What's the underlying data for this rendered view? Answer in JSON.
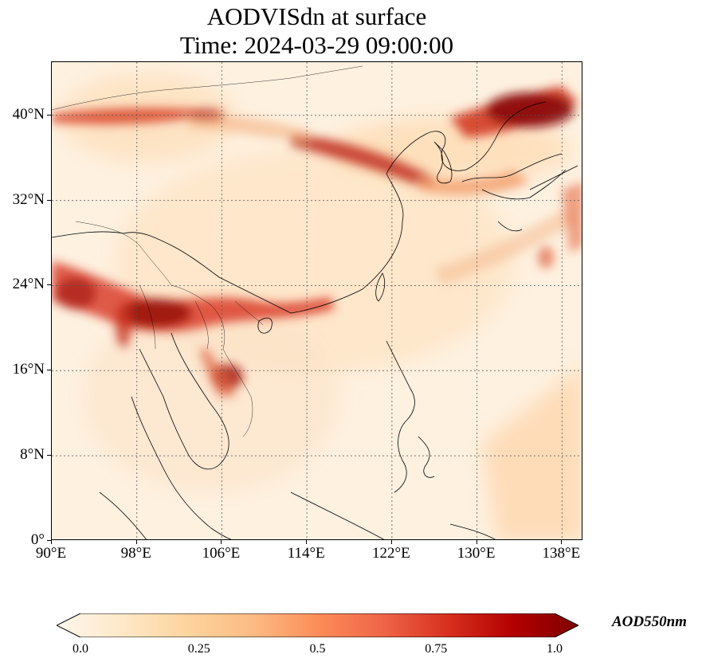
{
  "title": {
    "line1": "AODVISdn at surface",
    "line2": "Time: 2024-03-29 09:00:00"
  },
  "map": {
    "lon_range": [
      90,
      140
    ],
    "lat_range": [
      0,
      45
    ],
    "lat_ticks": [
      {
        "value": 0,
        "label": "0°"
      },
      {
        "value": 8,
        "label": "8°N"
      },
      {
        "value": 16,
        "label": "16°N"
      },
      {
        "value": 24,
        "label": "24°N"
      },
      {
        "value": 32,
        "label": "32°N"
      },
      {
        "value": 40,
        "label": "40°N"
      }
    ],
    "lon_ticks": [
      {
        "value": 90,
        "label": "90°E"
      },
      {
        "value": 98,
        "label": "98°E"
      },
      {
        "value": 106,
        "label": "106°E"
      },
      {
        "value": 114,
        "label": "114°E"
      },
      {
        "value": 122,
        "label": "122°E"
      },
      {
        "value": 130,
        "label": "130°E"
      },
      {
        "value": 138,
        "label": "138°E"
      }
    ],
    "gridlines": true,
    "colormap": "OrRd",
    "plumes": [
      {
        "region": "north-china-northeast-band",
        "aod": 0.75
      },
      {
        "region": "korea-japan-sea",
        "aod": 0.95
      },
      {
        "region": "northern-india-40N",
        "aod": 0.65
      },
      {
        "region": "myanmar-laos-south-china",
        "aod": 0.9
      },
      {
        "region": "cambodia-laos",
        "aod": 0.8
      }
    ]
  },
  "colorbar": {
    "label": "AOD550nm",
    "min": 0.0,
    "max": 1.0,
    "extend": "both",
    "ticks": [
      "0.0",
      "0.25",
      "0.5",
      "0.75",
      "1.0"
    ],
    "colors": [
      "#fff7ec",
      "#fee8c8",
      "#fdd49e",
      "#fdbb84",
      "#fc8d59",
      "#ef6548",
      "#d7301f",
      "#b30000",
      "#7f0000"
    ]
  }
}
